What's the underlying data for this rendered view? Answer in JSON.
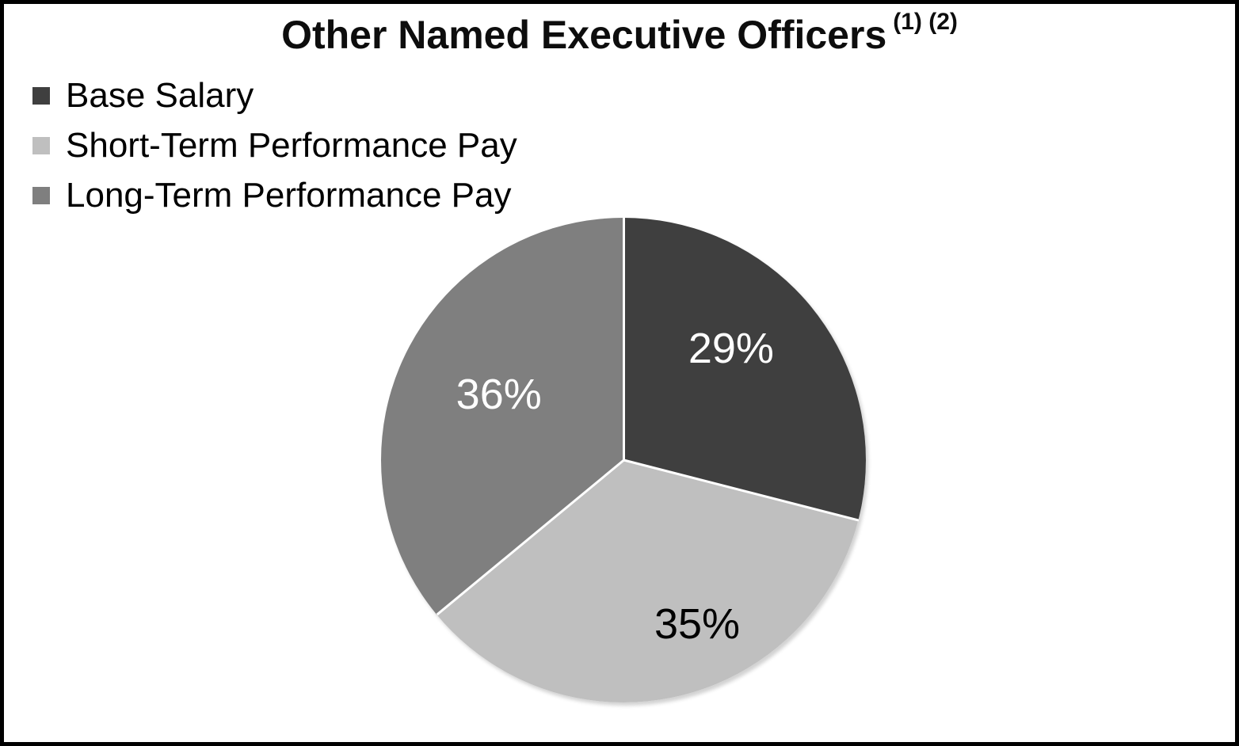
{
  "title": {
    "text": "Other Named Executive Officers",
    "superscript": "(1) (2)"
  },
  "legend": {
    "position": "top-left",
    "items": [
      {
        "label": "Base Salary",
        "color": "#3F3F3F"
      },
      {
        "label": "Short-Term Performance Pay",
        "color": "#BFBFBF"
      },
      {
        "label": "Long-Term Performance Pay",
        "color": "#7F7F7F"
      }
    ]
  },
  "chart_data": {
    "type": "pie",
    "title": "Other Named Executive Officers (1) (2)",
    "categories": [
      "Base Salary",
      "Short-Term Performance Pay",
      "Long-Term Performance Pay"
    ],
    "values": [
      29,
      35,
      36
    ],
    "unit": "percent",
    "colors": [
      "#3F3F3F",
      "#BFBFBF",
      "#7F7F7F"
    ],
    "start_angle_deg": 0,
    "direction": "clockwise",
    "separator_color": "#FFFFFF",
    "legend_position": "top-left",
    "slice_labels": [
      {
        "text": "29%",
        "color": "#FFFFFF",
        "x_pct": 72.2,
        "y_pct": 27.0
      },
      {
        "text": "35%",
        "color": "#000000",
        "x_pct": 65.2,
        "y_pct": 83.8
      },
      {
        "text": "36%",
        "color": "#FFFFFF",
        "x_pct": 24.3,
        "y_pct": 36.4
      }
    ]
  },
  "frame": {
    "border_color": "#000000",
    "background_color": "#FFFFFF"
  }
}
